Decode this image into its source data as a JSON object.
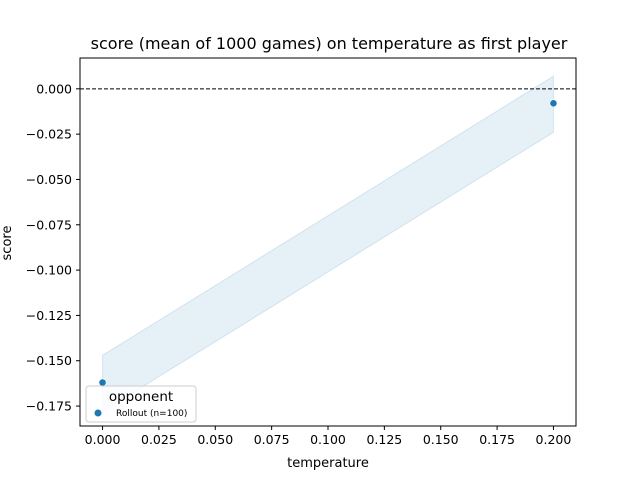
{
  "chart_data": {
    "type": "scatter",
    "title": "score (mean of 1000 games) on temperature as first player",
    "xlabel": "temperature",
    "ylabel": "score",
    "xlim": [
      -0.01,
      0.21
    ],
    "ylim": [
      -0.186,
      0.017
    ],
    "xticks": [
      0.0,
      0.025,
      0.05,
      0.075,
      0.1,
      0.125,
      0.15,
      0.175,
      0.2
    ],
    "xtick_labels": [
      "0.000",
      "0.025",
      "0.050",
      "0.075",
      "0.100",
      "0.125",
      "0.150",
      "0.175",
      "0.200"
    ],
    "yticks": [
      0.0,
      -0.025,
      -0.05,
      -0.075,
      -0.1,
      -0.125,
      -0.15,
      -0.175
    ],
    "ytick_labels": [
      "0.000",
      "−0.025",
      "−0.050",
      "−0.075",
      "−0.100",
      "−0.125",
      "−0.150",
      "−0.175"
    ],
    "grid": false,
    "reference_line": {
      "y": 0.0,
      "style": "dashed",
      "color": "#000000"
    },
    "series": [
      {
        "name": "Rollout (n=100)",
        "color": "#1f77b4",
        "points": [
          {
            "x": 0.0,
            "y": -0.162
          },
          {
            "x": 0.2,
            "y": -0.008
          }
        ],
        "band": [
          {
            "x": 0.0,
            "lower": -0.178,
            "upper": -0.147
          },
          {
            "x": 0.2,
            "lower": -0.024,
            "upper": 0.007
          }
        ],
        "band_color": "#1f77b4"
      }
    ],
    "legend": {
      "title": "opponent",
      "placement": "lower-left"
    }
  }
}
